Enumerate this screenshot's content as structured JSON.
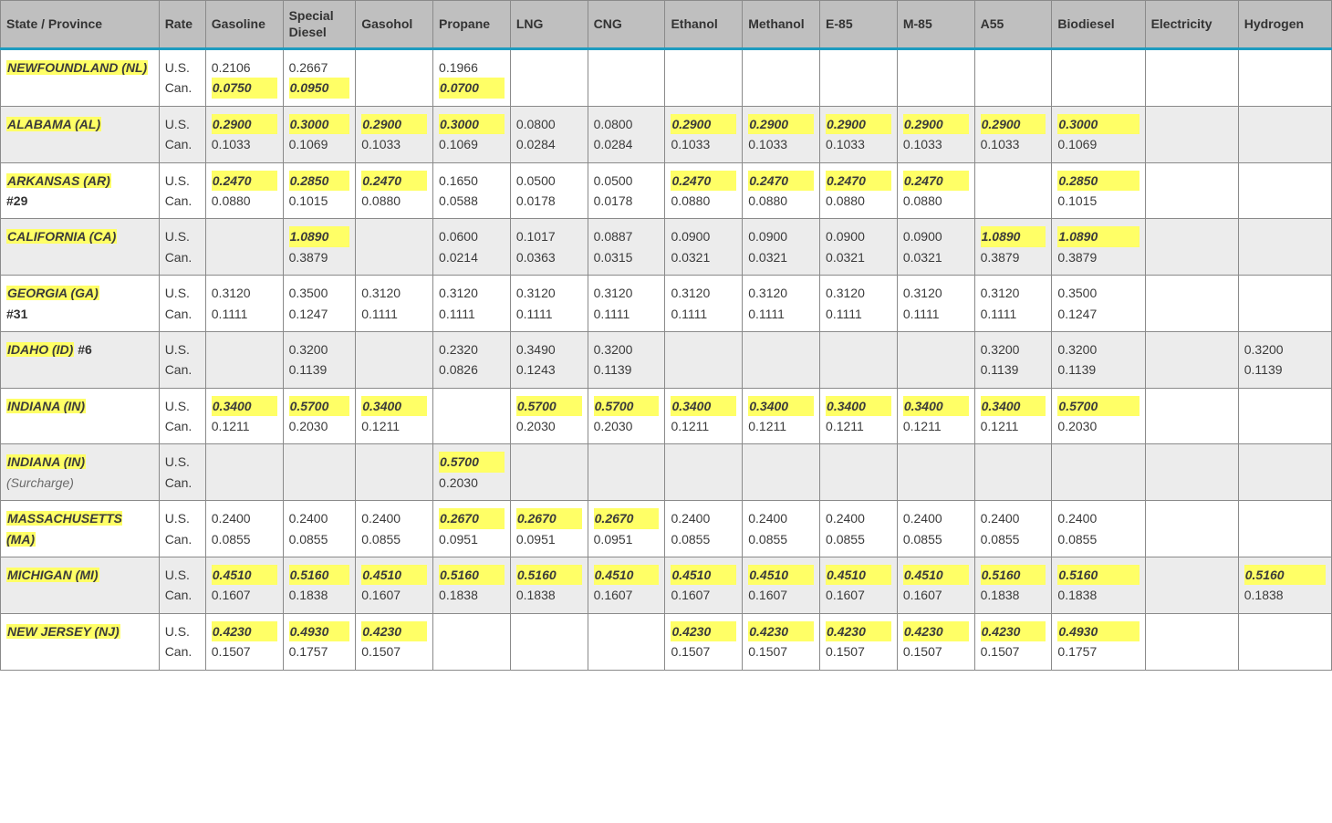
{
  "columns": [
    {
      "key": "state",
      "label": "State / Province"
    },
    {
      "key": "rate",
      "label": "Rate"
    },
    {
      "key": "gasoline",
      "label": "Gasoline"
    },
    {
      "key": "spdiesel",
      "label": "Special Diesel"
    },
    {
      "key": "gasohol",
      "label": "Gasohol"
    },
    {
      "key": "propane",
      "label": "Propane"
    },
    {
      "key": "lng",
      "label": "LNG"
    },
    {
      "key": "cng",
      "label": "CNG"
    },
    {
      "key": "ethanol",
      "label": "Ethanol"
    },
    {
      "key": "methanol",
      "label": "Methanol"
    },
    {
      "key": "e85",
      "label": "E-85"
    },
    {
      "key": "m85",
      "label": "M-85"
    },
    {
      "key": "a55",
      "label": "A55"
    },
    {
      "key": "biodiesel",
      "label": "Biodiesel"
    },
    {
      "key": "electricity",
      "label": "Electricity"
    },
    {
      "key": "hydrogen",
      "label": "Hydrogen"
    }
  ],
  "rate_labels": {
    "us": "U.S.",
    "can": "Can."
  },
  "fuel_keys": [
    "gasoline",
    "spdiesel",
    "gasohol",
    "propane",
    "lng",
    "cng",
    "ethanol",
    "methanol",
    "e85",
    "m85",
    "a55",
    "biodiesel",
    "electricity",
    "hydrogen"
  ],
  "rows": [
    {
      "name": "NEWFOUNDLAND (NL)",
      "extra": "",
      "sub": "",
      "shade": false,
      "fuels": {
        "gasoline": {
          "us": "0.2106",
          "can": "0.0750",
          "us_hl": false,
          "can_hl": true
        },
        "spdiesel": {
          "us": "0.2667",
          "can": "0.0950",
          "us_hl": false,
          "can_hl": true
        },
        "propane": {
          "us": "0.1966",
          "can": "0.0700",
          "us_hl": false,
          "can_hl": true
        }
      }
    },
    {
      "name": "ALABAMA (AL)",
      "extra": "",
      "sub": "",
      "shade": true,
      "fuels": {
        "gasoline": {
          "us": "0.2900",
          "can": "0.1033",
          "us_hl": true,
          "can_hl": false
        },
        "spdiesel": {
          "us": "0.3000",
          "can": "0.1069",
          "us_hl": true,
          "can_hl": false
        },
        "gasohol": {
          "us": "0.2900",
          "can": "0.1033",
          "us_hl": true,
          "can_hl": false
        },
        "propane": {
          "us": "0.3000",
          "can": "0.1069",
          "us_hl": true,
          "can_hl": false
        },
        "lng": {
          "us": "0.0800",
          "can": "0.0284",
          "us_hl": false,
          "can_hl": false
        },
        "cng": {
          "us": "0.0800",
          "can": "0.0284",
          "us_hl": false,
          "can_hl": false
        },
        "ethanol": {
          "us": "0.2900",
          "can": "0.1033",
          "us_hl": true,
          "can_hl": false
        },
        "methanol": {
          "us": "0.2900",
          "can": "0.1033",
          "us_hl": true,
          "can_hl": false
        },
        "e85": {
          "us": "0.2900",
          "can": "0.1033",
          "us_hl": true,
          "can_hl": false
        },
        "m85": {
          "us": "0.2900",
          "can": "0.1033",
          "us_hl": true,
          "can_hl": false
        },
        "a55": {
          "us": "0.2900",
          "can": "0.1033",
          "us_hl": true,
          "can_hl": false
        },
        "biodiesel": {
          "us": "0.3000",
          "can": "0.1069",
          "us_hl": true,
          "can_hl": false
        }
      }
    },
    {
      "name": "ARKANSAS (AR)",
      "extra": "#29",
      "sub": "",
      "shade": false,
      "fuels": {
        "gasoline": {
          "us": "0.2470",
          "can": "0.0880",
          "us_hl": true,
          "can_hl": false
        },
        "spdiesel": {
          "us": "0.2850",
          "can": "0.1015",
          "us_hl": true,
          "can_hl": false
        },
        "gasohol": {
          "us": "0.2470",
          "can": "0.0880",
          "us_hl": true,
          "can_hl": false
        },
        "propane": {
          "us": "0.1650",
          "can": "0.0588",
          "us_hl": false,
          "can_hl": false
        },
        "lng": {
          "us": "0.0500",
          "can": "0.0178",
          "us_hl": false,
          "can_hl": false
        },
        "cng": {
          "us": "0.0500",
          "can": "0.0178",
          "us_hl": false,
          "can_hl": false
        },
        "ethanol": {
          "us": "0.2470",
          "can": "0.0880",
          "us_hl": true,
          "can_hl": false
        },
        "methanol": {
          "us": "0.2470",
          "can": "0.0880",
          "us_hl": true,
          "can_hl": false
        },
        "e85": {
          "us": "0.2470",
          "can": "0.0880",
          "us_hl": true,
          "can_hl": false
        },
        "m85": {
          "us": "0.2470",
          "can": "0.0880",
          "us_hl": true,
          "can_hl": false
        },
        "biodiesel": {
          "us": "0.2850",
          "can": "0.1015",
          "us_hl": true,
          "can_hl": false
        }
      }
    },
    {
      "name": "CALIFORNIA (CA)",
      "extra": "",
      "sub": "",
      "shade": true,
      "fuels": {
        "spdiesel": {
          "us": "1.0890",
          "can": "0.3879",
          "us_hl": true,
          "can_hl": false
        },
        "propane": {
          "us": "0.0600",
          "can": "0.0214",
          "us_hl": false,
          "can_hl": false
        },
        "lng": {
          "us": "0.1017",
          "can": "0.0363",
          "us_hl": false,
          "can_hl": false
        },
        "cng": {
          "us": "0.0887",
          "can": "0.0315",
          "us_hl": false,
          "can_hl": false
        },
        "ethanol": {
          "us": "0.0900",
          "can": "0.0321",
          "us_hl": false,
          "can_hl": false
        },
        "methanol": {
          "us": "0.0900",
          "can": "0.0321",
          "us_hl": false,
          "can_hl": false
        },
        "e85": {
          "us": "0.0900",
          "can": "0.0321",
          "us_hl": false,
          "can_hl": false
        },
        "m85": {
          "us": "0.0900",
          "can": "0.0321",
          "us_hl": false,
          "can_hl": false
        },
        "a55": {
          "us": "1.0890",
          "can": "0.3879",
          "us_hl": true,
          "can_hl": false
        },
        "biodiesel": {
          "us": "1.0890",
          "can": "0.3879",
          "us_hl": true,
          "can_hl": false
        }
      }
    },
    {
      "name": "GEORGIA (GA)",
      "extra": "#31",
      "sub": "",
      "shade": false,
      "fuels": {
        "gasoline": {
          "us": "0.3120",
          "can": "0.1111",
          "us_hl": false,
          "can_hl": false
        },
        "spdiesel": {
          "us": "0.3500",
          "can": "0.1247",
          "us_hl": false,
          "can_hl": false
        },
        "gasohol": {
          "us": "0.3120",
          "can": "0.1111",
          "us_hl": false,
          "can_hl": false
        },
        "propane": {
          "us": "0.3120",
          "can": "0.1111",
          "us_hl": false,
          "can_hl": false
        },
        "lng": {
          "us": "0.3120",
          "can": "0.1111",
          "us_hl": false,
          "can_hl": false
        },
        "cng": {
          "us": "0.3120",
          "can": "0.1111",
          "us_hl": false,
          "can_hl": false
        },
        "ethanol": {
          "us": "0.3120",
          "can": "0.1111",
          "us_hl": false,
          "can_hl": false
        },
        "methanol": {
          "us": "0.3120",
          "can": "0.1111",
          "us_hl": false,
          "can_hl": false
        },
        "e85": {
          "us": "0.3120",
          "can": "0.1111",
          "us_hl": false,
          "can_hl": false
        },
        "m85": {
          "us": "0.3120",
          "can": "0.1111",
          "us_hl": false,
          "can_hl": false
        },
        "a55": {
          "us": "0.3120",
          "can": "0.1111",
          "us_hl": false,
          "can_hl": false
        },
        "biodiesel": {
          "us": "0.3500",
          "can": "0.1247",
          "us_hl": false,
          "can_hl": false
        }
      }
    },
    {
      "name": "IDAHO (ID)",
      "extra": "#6",
      "extra_inline": true,
      "sub": "",
      "shade": true,
      "fuels": {
        "spdiesel": {
          "us": "0.3200",
          "can": "0.1139",
          "us_hl": false,
          "can_hl": false
        },
        "propane": {
          "us": "0.2320",
          "can": "0.0826",
          "us_hl": false,
          "can_hl": false
        },
        "lng": {
          "us": "0.3490",
          "can": "0.1243",
          "us_hl": false,
          "can_hl": false
        },
        "cng": {
          "us": "0.3200",
          "can": "0.1139",
          "us_hl": false,
          "can_hl": false
        },
        "a55": {
          "us": "0.3200",
          "can": "0.1139",
          "us_hl": false,
          "can_hl": false
        },
        "biodiesel": {
          "us": "0.3200",
          "can": "0.1139",
          "us_hl": false,
          "can_hl": false
        },
        "hydrogen": {
          "us": "0.3200",
          "can": "0.1139",
          "us_hl": false,
          "can_hl": false
        }
      }
    },
    {
      "name": "INDIANA (IN)",
      "extra": "",
      "sub": "",
      "shade": false,
      "fuels": {
        "gasoline": {
          "us": "0.3400",
          "can": "0.1211",
          "us_hl": true,
          "can_hl": false
        },
        "spdiesel": {
          "us": "0.5700",
          "can": "0.2030",
          "us_hl": true,
          "can_hl": false
        },
        "gasohol": {
          "us": "0.3400",
          "can": "0.1211",
          "us_hl": true,
          "can_hl": false
        },
        "lng": {
          "us": "0.5700",
          "can": "0.2030",
          "us_hl": true,
          "can_hl": false
        },
        "cng": {
          "us": "0.5700",
          "can": "0.2030",
          "us_hl": true,
          "can_hl": false
        },
        "ethanol": {
          "us": "0.3400",
          "can": "0.1211",
          "us_hl": true,
          "can_hl": false
        },
        "methanol": {
          "us": "0.3400",
          "can": "0.1211",
          "us_hl": true,
          "can_hl": false
        },
        "e85": {
          "us": "0.3400",
          "can": "0.1211",
          "us_hl": true,
          "can_hl": false
        },
        "m85": {
          "us": "0.3400",
          "can": "0.1211",
          "us_hl": true,
          "can_hl": false
        },
        "a55": {
          "us": "0.3400",
          "can": "0.1211",
          "us_hl": true,
          "can_hl": false
        },
        "biodiesel": {
          "us": "0.5700",
          "can": "0.2030",
          "us_hl": true,
          "can_hl": false
        }
      }
    },
    {
      "name": "INDIANA (IN)",
      "extra": "",
      "sub": "(Surcharge)",
      "shade": true,
      "fuels": {
        "propane": {
          "us": "0.5700",
          "can": "0.2030",
          "us_hl": true,
          "can_hl": false
        }
      }
    },
    {
      "name": "MASSACHUSETTS (MA)",
      "extra": "",
      "sub": "",
      "shade": false,
      "fuels": {
        "gasoline": {
          "us": "0.2400",
          "can": "0.0855",
          "us_hl": false,
          "can_hl": false
        },
        "spdiesel": {
          "us": "0.2400",
          "can": "0.0855",
          "us_hl": false,
          "can_hl": false
        },
        "gasohol": {
          "us": "0.2400",
          "can": "0.0855",
          "us_hl": false,
          "can_hl": false
        },
        "propane": {
          "us": "0.2670",
          "can": "0.0951",
          "us_hl": true,
          "can_hl": false
        },
        "lng": {
          "us": "0.2670",
          "can": "0.0951",
          "us_hl": true,
          "can_hl": false
        },
        "cng": {
          "us": "0.2670",
          "can": "0.0951",
          "us_hl": true,
          "can_hl": false
        },
        "ethanol": {
          "us": "0.2400",
          "can": "0.0855",
          "us_hl": false,
          "can_hl": false
        },
        "methanol": {
          "us": "0.2400",
          "can": "0.0855",
          "us_hl": false,
          "can_hl": false
        },
        "e85": {
          "us": "0.2400",
          "can": "0.0855",
          "us_hl": false,
          "can_hl": false
        },
        "m85": {
          "us": "0.2400",
          "can": "0.0855",
          "us_hl": false,
          "can_hl": false
        },
        "a55": {
          "us": "0.2400",
          "can": "0.0855",
          "us_hl": false,
          "can_hl": false
        },
        "biodiesel": {
          "us": "0.2400",
          "can": "0.0855",
          "us_hl": false,
          "can_hl": false
        }
      }
    },
    {
      "name": "MICHIGAN (MI)",
      "extra": "",
      "sub": "",
      "shade": true,
      "fuels": {
        "gasoline": {
          "us": "0.4510",
          "can": "0.1607",
          "us_hl": true,
          "can_hl": false
        },
        "spdiesel": {
          "us": "0.5160",
          "can": "0.1838",
          "us_hl": true,
          "can_hl": false
        },
        "gasohol": {
          "us": "0.4510",
          "can": "0.1607",
          "us_hl": true,
          "can_hl": false
        },
        "propane": {
          "us": "0.5160",
          "can": "0.1838",
          "us_hl": true,
          "can_hl": false
        },
        "lng": {
          "us": "0.5160",
          "can": "0.1838",
          "us_hl": true,
          "can_hl": false
        },
        "cng": {
          "us": "0.4510",
          "can": "0.1607",
          "us_hl": true,
          "can_hl": false
        },
        "ethanol": {
          "us": "0.4510",
          "can": "0.1607",
          "us_hl": true,
          "can_hl": false
        },
        "methanol": {
          "us": "0.4510",
          "can": "0.1607",
          "us_hl": true,
          "can_hl": false
        },
        "e85": {
          "us": "0.4510",
          "can": "0.1607",
          "us_hl": true,
          "can_hl": false
        },
        "m85": {
          "us": "0.4510",
          "can": "0.1607",
          "us_hl": true,
          "can_hl": false
        },
        "a55": {
          "us": "0.5160",
          "can": "0.1838",
          "us_hl": true,
          "can_hl": false
        },
        "biodiesel": {
          "us": "0.5160",
          "can": "0.1838",
          "us_hl": true,
          "can_hl": false
        },
        "hydrogen": {
          "us": "0.5160",
          "can": "0.1838",
          "us_hl": true,
          "can_hl": false
        }
      }
    },
    {
      "name": "NEW JERSEY (NJ)",
      "extra": "",
      "sub": "",
      "shade": false,
      "fuels": {
        "gasoline": {
          "us": "0.4230",
          "can": "0.1507",
          "us_hl": true,
          "can_hl": false
        },
        "spdiesel": {
          "us": "0.4930",
          "can": "0.1757",
          "us_hl": true,
          "can_hl": false
        },
        "gasohol": {
          "us": "0.4230",
          "can": "0.1507",
          "us_hl": true,
          "can_hl": false
        },
        "ethanol": {
          "us": "0.4230",
          "can": "0.1507",
          "us_hl": true,
          "can_hl": false
        },
        "methanol": {
          "us": "0.4230",
          "can": "0.1507",
          "us_hl": true,
          "can_hl": false
        },
        "e85": {
          "us": "0.4230",
          "can": "0.1507",
          "us_hl": true,
          "can_hl": false
        },
        "m85": {
          "us": "0.4230",
          "can": "0.1507",
          "us_hl": true,
          "can_hl": false
        },
        "a55": {
          "us": "0.4230",
          "can": "0.1507",
          "us_hl": true,
          "can_hl": false
        },
        "biodiesel": {
          "us": "0.4930",
          "can": "0.1757",
          "us_hl": true,
          "can_hl": false
        }
      }
    }
  ]
}
